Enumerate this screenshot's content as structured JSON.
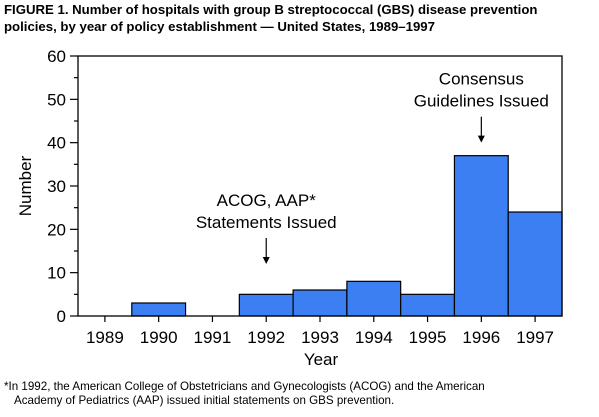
{
  "title": {
    "line1": "FIGURE 1. Number of hospitals with group B streptococcal (GBS) disease prevention",
    "line2": "policies, by year of policy establishment — United States, 1989–1997"
  },
  "chart_data": {
    "type": "bar",
    "categories": [
      "1989",
      "1990",
      "1991",
      "1992",
      "1993",
      "1994",
      "1995",
      "1996",
      "1997"
    ],
    "values": [
      0,
      3,
      0,
      5,
      6,
      8,
      5,
      37,
      24
    ],
    "xlabel": "Year",
    "ylabel": "Number",
    "ylim": [
      0,
      60
    ],
    "yticks": [
      0,
      10,
      20,
      30,
      40,
      50,
      60
    ],
    "grid": false,
    "bar_color": "#3b7ff2",
    "annotations": [
      {
        "lines": [
          "ACOG, AAP*",
          "Statements Issued"
        ],
        "category": "1992",
        "arrow_to": 12
      },
      {
        "lines": [
          "Consensus",
          "Guidelines Issued"
        ],
        "category": "1996",
        "arrow_to": 40
      }
    ]
  },
  "footnote": {
    "line1": "*In 1992, the American College of Obstetricians and Gynecologists (ACOG) and the American",
    "line2": "Academy of Pediatrics (AAP) issued initial statements on GBS prevention."
  }
}
